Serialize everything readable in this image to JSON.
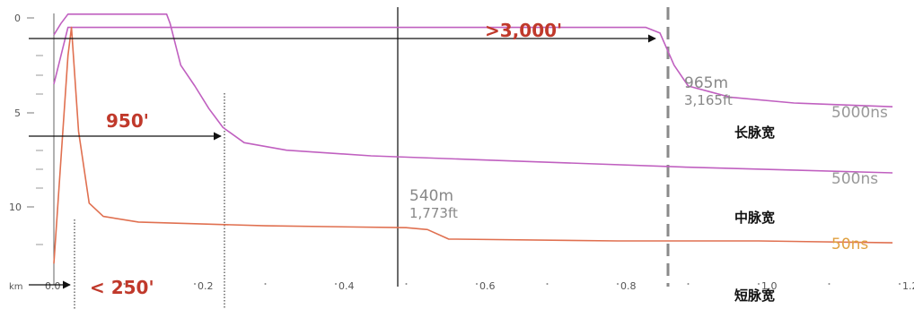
{
  "chart_data": {
    "type": "line",
    "title": "",
    "xlabel": "km",
    "ylabel": "",
    "xlim": [
      0,
      1.25
    ],
    "ylim": [
      0,
      14.2
    ],
    "y_inverted": true,
    "grid": false,
    "x_ticks": [
      "0.0",
      "0.2",
      "0.4",
      "0.6",
      "0.8",
      "1.0",
      "1.2"
    ],
    "x_tick_values": [
      0.0,
      0.2,
      0.4,
      0.6,
      0.8,
      1.0,
      1.2
    ],
    "y_ticks": [
      "0",
      "5",
      "10"
    ],
    "y_tick_values": [
      0,
      5,
      10
    ],
    "series": [
      {
        "name": "5000ns",
        "color": "#c060c0",
        "points": [
          [
            0.0,
            0.9
          ],
          [
            0.01,
            0.3
          ],
          [
            0.02,
            -0.2
          ],
          [
            0.1,
            -0.2
          ],
          [
            0.16,
            -0.2
          ],
          [
            0.165,
            0.3
          ],
          [
            0.18,
            2.5
          ],
          [
            0.2,
            3.6
          ],
          [
            0.22,
            4.8
          ],
          [
            0.24,
            5.8
          ],
          [
            0.27,
            6.6
          ],
          [
            0.33,
            7.0
          ],
          [
            0.45,
            7.3
          ],
          [
            0.6,
            7.5
          ],
          [
            0.75,
            7.7
          ],
          [
            0.9,
            7.9
          ],
          [
            1.05,
            8.05
          ],
          [
            1.19,
            8.2
          ]
        ]
      },
      {
        "name": "500ns",
        "color": "#c060c0",
        "points": [
          [
            0.0,
            3.5
          ],
          [
            0.02,
            0.5
          ],
          [
            0.06,
            0.5
          ],
          [
            0.3,
            0.5
          ],
          [
            0.6,
            0.5
          ],
          [
            0.84,
            0.5
          ],
          [
            0.86,
            0.8
          ],
          [
            0.88,
            2.5
          ],
          [
            0.9,
            3.6
          ],
          [
            0.93,
            3.9
          ],
          [
            0.96,
            4.2
          ],
          [
            1.05,
            4.5
          ],
          [
            1.19,
            4.7
          ]
        ]
      },
      {
        "name": "50ns",
        "color": "#e07050",
        "points": [
          [
            0.0,
            13.0
          ],
          [
            0.02,
            2.0
          ],
          [
            0.025,
            0.5
          ],
          [
            0.035,
            6.0
          ],
          [
            0.05,
            9.8
          ],
          [
            0.07,
            10.5
          ],
          [
            0.12,
            10.8
          ],
          [
            0.3,
            11.0
          ],
          [
            0.5,
            11.1
          ],
          [
            0.53,
            11.2
          ],
          [
            0.56,
            11.7
          ],
          [
            0.8,
            11.8
          ],
          [
            1.0,
            11.8
          ],
          [
            1.19,
            11.9
          ]
        ]
      }
    ],
    "annotations": {
      "long_range": ">3,000'",
      "mid_range": "950'",
      "short_range": "< 250'",
      "event_1_m": "540m",
      "event_1_ft": "1,773ft",
      "event_2_m": "965m",
      "event_2_ft": "3,165ft"
    },
    "series_labels": {
      "long": "5000ns",
      "mid": "500ns",
      "short": "50ns"
    },
    "chinese_labels": {
      "long": "长脉宽",
      "mid": "中脉宽",
      "short": "短脉宽"
    }
  }
}
